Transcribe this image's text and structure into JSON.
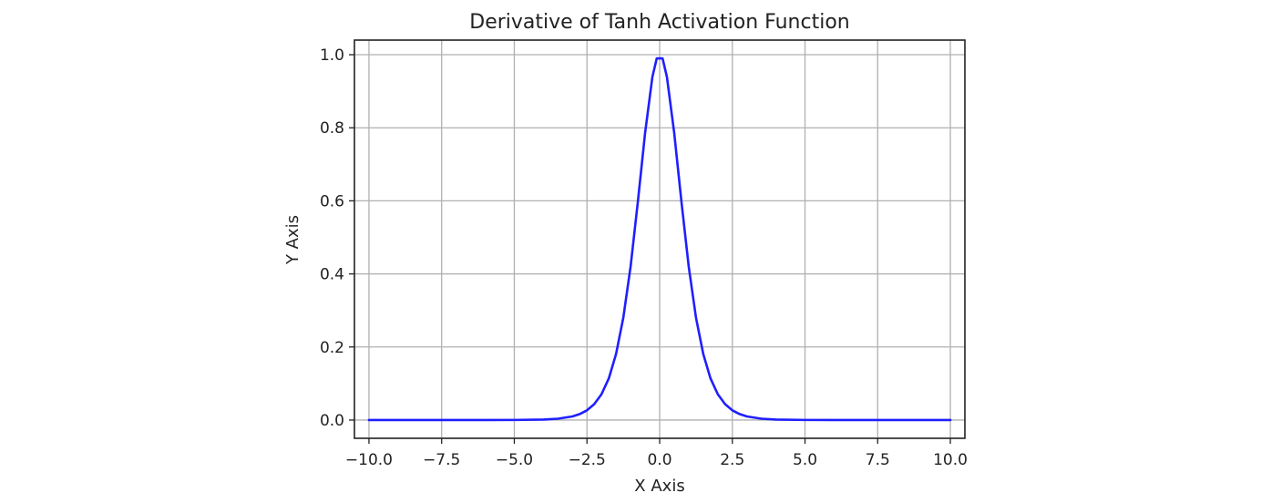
{
  "chart_data": {
    "type": "line",
    "title": "Derivative of Tanh Activation Function",
    "xlabel": "X Axis",
    "ylabel": "Y Axis",
    "xlim": [
      -10.5,
      10.5
    ],
    "ylim": [
      -0.05,
      1.04
    ],
    "grid": true,
    "xticks": [
      -10.0,
      -7.5,
      -5.0,
      -2.5,
      0.0,
      2.5,
      5.0,
      7.5,
      10.0
    ],
    "xtick_labels": [
      "−10.0",
      "−7.5",
      "−5.0",
      "−2.5",
      "0.0",
      "2.5",
      "5.0",
      "7.5",
      "10.0"
    ],
    "yticks": [
      0.0,
      0.2,
      0.4,
      0.6,
      0.8,
      1.0
    ],
    "ytick_labels": [
      "0.0",
      "0.2",
      "0.4",
      "0.6",
      "0.8",
      "1.0"
    ],
    "series": [
      {
        "color": "#1f1fff",
        "x": [
          -10,
          -8,
          -6,
          -5,
          -4,
          -3.5,
          -3,
          -2.75,
          -2.5,
          -2.25,
          -2,
          -1.75,
          -1.5,
          -1.25,
          -1,
          -0.75,
          -0.5,
          -0.25,
          -0.1,
          0.1,
          0.25,
          0.5,
          0.75,
          1,
          1.25,
          1.5,
          1.75,
          2,
          2.25,
          2.5,
          2.75,
          3,
          3.5,
          4,
          5,
          6,
          8,
          10
        ],
        "y": [
          0.0,
          0.0,
          0.0,
          0.0002,
          0.0013,
          0.0036,
          0.0099,
          0.0163,
          0.0266,
          0.0435,
          0.0707,
          0.1138,
          0.1807,
          0.2802,
          0.42,
          0.5972,
          0.7864,
          0.9391,
          0.99,
          0.99,
          0.9391,
          0.7864,
          0.5972,
          0.42,
          0.2802,
          0.1807,
          0.1138,
          0.0707,
          0.0435,
          0.0266,
          0.0163,
          0.0099,
          0.0036,
          0.0013,
          0.0002,
          0.0,
          0.0,
          0.0
        ]
      }
    ]
  }
}
